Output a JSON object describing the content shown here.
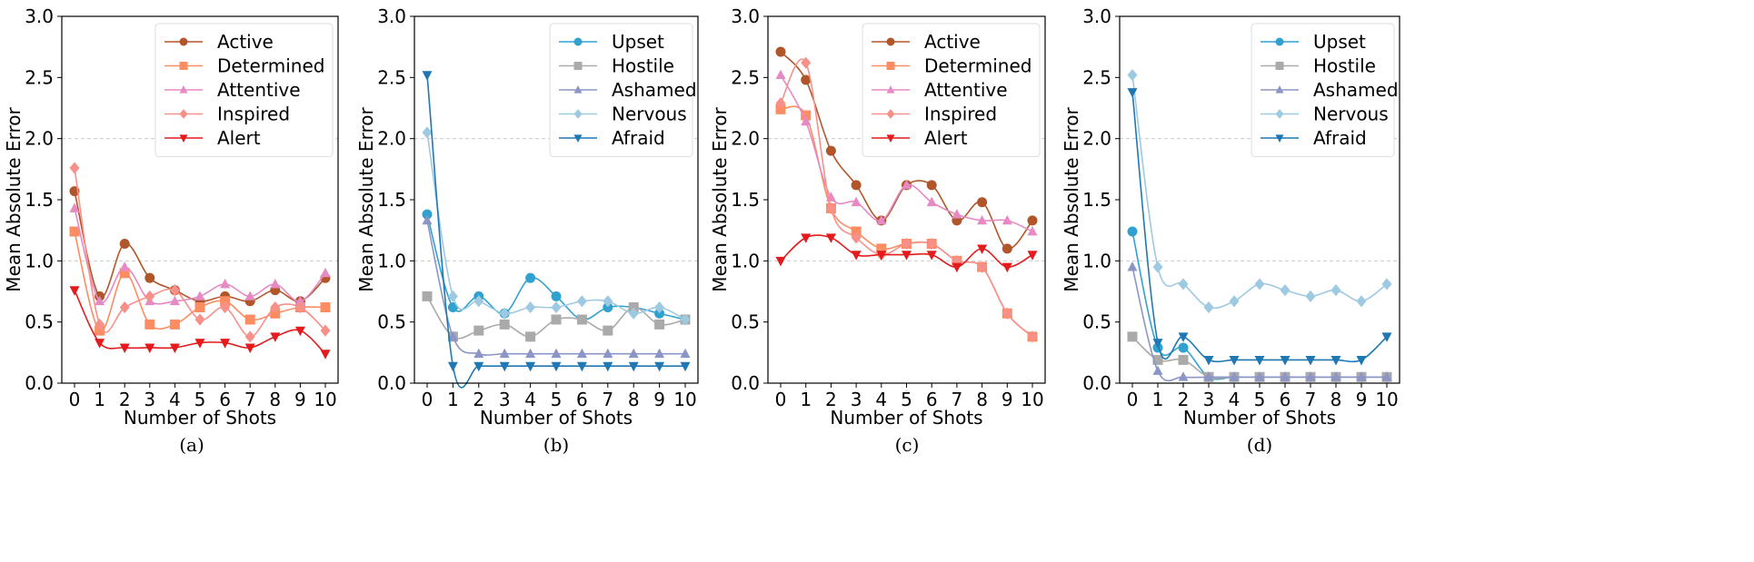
{
  "chart_data": [
    {
      "type": "line",
      "caption": "(a)",
      "xlabel": "Number of Shots",
      "ylabel": "Mean Absolute Error",
      "ylim": [
        0,
        3
      ],
      "x": [
        0,
        1,
        2,
        3,
        4,
        5,
        6,
        7,
        8,
        9,
        10
      ],
      "yticks": [
        "0.0",
        "0.5",
        "1.0",
        "1.5",
        "2.0",
        "2.5",
        "3.0"
      ],
      "grid": "horizontal dashed",
      "legend": "top-right",
      "series": [
        {
          "name": "Active",
          "color": "#b0562a",
          "marker": "circle",
          "values": [
            1.57,
            0.71,
            1.14,
            0.86,
            0.76,
            0.67,
            0.71,
            0.67,
            0.76,
            0.67,
            0.86
          ]
        },
        {
          "name": "Determined",
          "color": "#fc8d62",
          "marker": "square",
          "values": [
            1.24,
            0.43,
            0.9,
            0.48,
            0.48,
            0.62,
            0.67,
            0.52,
            0.57,
            0.62,
            0.62
          ]
        },
        {
          "name": "Attentive",
          "color": "#e78ac3",
          "marker": "triangle-up",
          "values": [
            1.43,
            0.67,
            0.95,
            0.67,
            0.67,
            0.71,
            0.81,
            0.71,
            0.81,
            0.67,
            0.9
          ]
        },
        {
          "name": "Inspired",
          "color": "#f8908a",
          "marker": "diamond",
          "values": [
            1.76,
            0.48,
            0.62,
            0.71,
            0.76,
            0.52,
            0.62,
            0.38,
            0.62,
            0.62,
            0.43
          ]
        },
        {
          "name": "Alert",
          "color": "#e41a1c",
          "marker": "triangle-down",
          "values": [
            0.76,
            0.33,
            0.29,
            0.29,
            0.29,
            0.33,
            0.33,
            0.29,
            0.38,
            0.43,
            0.24
          ]
        }
      ]
    },
    {
      "type": "line",
      "caption": "(b)",
      "xlabel": "Number of Shots",
      "ylabel": "Mean Absolute Error",
      "ylim": [
        0,
        3
      ],
      "x": [
        0,
        1,
        2,
        3,
        4,
        5,
        6,
        7,
        8,
        9,
        10
      ],
      "yticks": [
        "0.0",
        "0.5",
        "1.0",
        "1.5",
        "2.0",
        "2.5",
        "3.0"
      ],
      "grid": "horizontal dashed",
      "legend": "top-right",
      "series": [
        {
          "name": "Upset",
          "color": "#31a2d0",
          "marker": "circle",
          "values": [
            1.38,
            0.62,
            0.71,
            0.57,
            0.86,
            0.71,
            0.52,
            0.62,
            0.62,
            0.57,
            0.52
          ]
        },
        {
          "name": "Hostile",
          "color": "#aaaaaa",
          "marker": "square",
          "values": [
            0.71,
            0.38,
            0.43,
            0.48,
            0.38,
            0.52,
            0.52,
            0.43,
            0.62,
            0.48,
            0.52
          ]
        },
        {
          "name": "Ashamed",
          "color": "#8c96c6",
          "marker": "triangle-up",
          "values": [
            1.33,
            0.38,
            0.24,
            0.24,
            0.24,
            0.24,
            0.24,
            0.24,
            0.24,
            0.24,
            0.24
          ]
        },
        {
          "name": "Nervous",
          "color": "#9ecae1",
          "marker": "diamond",
          "values": [
            2.05,
            0.71,
            0.67,
            0.57,
            0.62,
            0.62,
            0.67,
            0.67,
            0.57,
            0.62,
            0.52
          ]
        },
        {
          "name": "Afraid",
          "color": "#1f78b4",
          "marker": "triangle-down",
          "values": [
            2.52,
            0.14,
            0.14,
            0.14,
            0.14,
            0.14,
            0.14,
            0.14,
            0.14,
            0.14,
            0.14
          ]
        }
      ]
    },
    {
      "type": "line",
      "caption": "(c)",
      "xlabel": "Number of Shots",
      "ylabel": "Mean Absolute Error",
      "ylim": [
        0,
        3
      ],
      "x": [
        0,
        1,
        2,
        3,
        4,
        5,
        6,
        7,
        8,
        9,
        10
      ],
      "yticks": [
        "0.0",
        "0.5",
        "1.0",
        "1.5",
        "2.0",
        "2.5",
        "3.0"
      ],
      "grid": "horizontal dashed",
      "legend": "top-right",
      "series": [
        {
          "name": "Active",
          "color": "#b0562a",
          "marker": "circle",
          "values": [
            2.71,
            2.48,
            1.9,
            1.62,
            1.33,
            1.62,
            1.62,
            1.33,
            1.48,
            1.1,
            1.33
          ]
        },
        {
          "name": "Determined",
          "color": "#fc8d62",
          "marker": "square",
          "values": [
            2.24,
            2.19,
            1.43,
            1.24,
            1.1,
            1.14,
            1.14,
            1.0,
            0.95,
            0.57,
            0.38
          ]
        },
        {
          "name": "Attentive",
          "color": "#e78ac3",
          "marker": "triangle-up",
          "values": [
            2.52,
            2.14,
            1.52,
            1.48,
            1.33,
            1.62,
            1.48,
            1.38,
            1.33,
            1.33,
            1.24
          ]
        },
        {
          "name": "Inspired",
          "color": "#f8908a",
          "marker": "diamond",
          "values": [
            2.29,
            2.62,
            1.43,
            1.19,
            1.05,
            1.14,
            1.14,
            1.0,
            0.95,
            0.57,
            0.38
          ]
        },
        {
          "name": "Alert",
          "color": "#e41a1c",
          "marker": "triangle-down",
          "values": [
            1.0,
            1.19,
            1.19,
            1.05,
            1.05,
            1.05,
            1.05,
            0.95,
            1.1,
            0.95,
            1.05
          ]
        }
      ]
    },
    {
      "type": "line",
      "caption": "(d)",
      "xlabel": "Number of Shots",
      "ylabel": "Mean Absolute Error",
      "ylim": [
        0,
        3
      ],
      "x": [
        0,
        1,
        2,
        3,
        4,
        5,
        6,
        7,
        8,
        9,
        10
      ],
      "yticks": [
        "0.0",
        "0.5",
        "1.0",
        "1.5",
        "2.0",
        "2.5",
        "3.0"
      ],
      "grid": "horizontal dashed",
      "legend": "top-right",
      "series": [
        {
          "name": "Upset",
          "color": "#31a2d0",
          "marker": "circle",
          "values": [
            1.24,
            0.29,
            0.29,
            0.05,
            0.05,
            0.05,
            0.05,
            0.05,
            0.05,
            0.05,
            0.05
          ]
        },
        {
          "name": "Hostile",
          "color": "#aaaaaa",
          "marker": "square",
          "values": [
            0.38,
            0.19,
            0.19,
            0.05,
            0.05,
            0.05,
            0.05,
            0.05,
            0.05,
            0.05,
            0.05
          ]
        },
        {
          "name": "Ashamed",
          "color": "#8c96c6",
          "marker": "triangle-up",
          "values": [
            0.95,
            0.1,
            0.05,
            0.05,
            0.05,
            0.05,
            0.05,
            0.05,
            0.05,
            0.05,
            0.05
          ]
        },
        {
          "name": "Nervous",
          "color": "#9ecae1",
          "marker": "diamond",
          "values": [
            2.52,
            0.95,
            0.81,
            0.62,
            0.67,
            0.81,
            0.76,
            0.71,
            0.76,
            0.67,
            0.81
          ]
        },
        {
          "name": "Afraid",
          "color": "#1f78b4",
          "marker": "triangle-down",
          "values": [
            2.38,
            0.33,
            0.38,
            0.19,
            0.19,
            0.19,
            0.19,
            0.19,
            0.19,
            0.19,
            0.38
          ]
        }
      ]
    }
  ]
}
